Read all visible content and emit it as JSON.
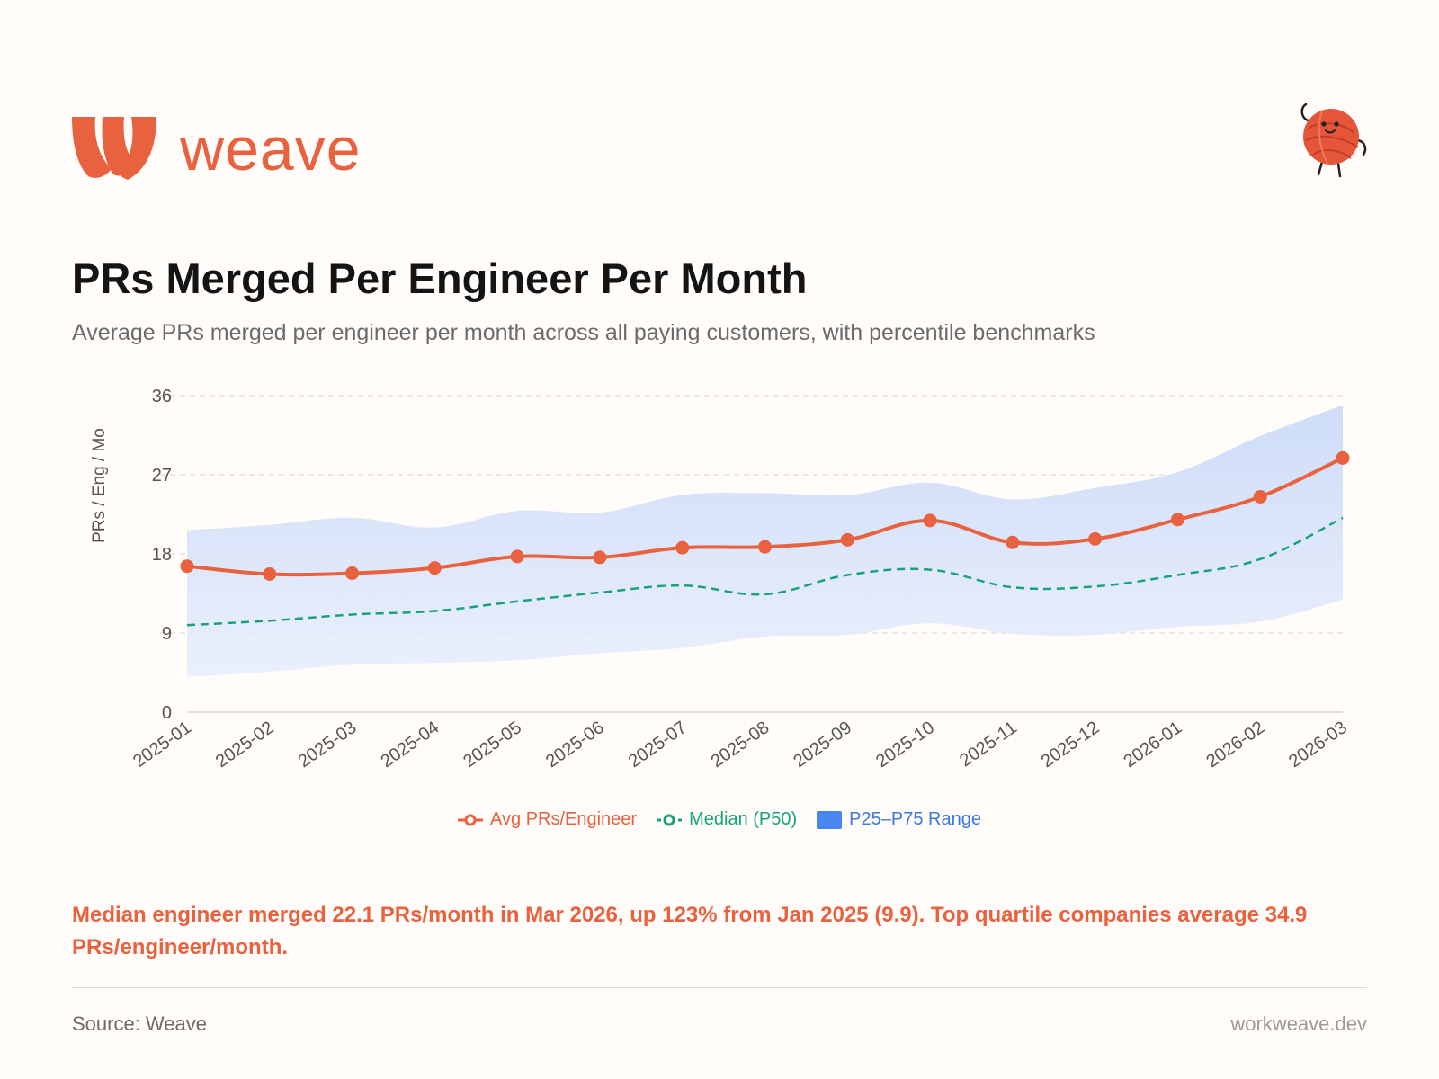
{
  "brand": {
    "name": "weave",
    "logo_icon": "weave-w-logo-icon",
    "mascot_icon": "yarn-ball-mascot-icon",
    "accent": "#e8623f"
  },
  "header": {
    "title": "PRs Merged Per Engineer Per Month",
    "subtitle": "Average PRs merged per engineer per month across all paying customers, with percentile benchmarks"
  },
  "chart_data": {
    "type": "line",
    "title": "PRs Merged Per Engineer Per Month",
    "xlabel": "",
    "ylabel": "PRs / Eng / Mo",
    "ylim": [
      0,
      36
    ],
    "yticks": [
      0,
      9,
      18,
      27,
      36
    ],
    "grid": true,
    "legend_position": "bottom-center",
    "categories": [
      "2025-01",
      "2025-02",
      "2025-03",
      "2025-04",
      "2025-05",
      "2025-06",
      "2025-07",
      "2025-08",
      "2025-09",
      "2025-10",
      "2025-11",
      "2025-12",
      "2026-01",
      "2026-02",
      "2026-03"
    ],
    "series": [
      {
        "name": "Avg PRs/Engineer",
        "style": "solid-markers",
        "color": "#e8623f",
        "values": [
          16.6,
          15.7,
          15.8,
          16.4,
          17.7,
          17.6,
          18.7,
          18.8,
          19.6,
          21.8,
          19.3,
          19.7,
          21.9,
          24.5,
          28.9
        ]
      },
      {
        "name": "Median (P50)",
        "style": "dashed",
        "color": "#17a37a",
        "values": [
          9.9,
          10.4,
          11.1,
          11.5,
          12.6,
          13.6,
          14.4,
          13.4,
          15.6,
          16.2,
          14.2,
          14.3,
          15.6,
          17.4,
          22.1
        ]
      },
      {
        "name": "P25–P75 Range",
        "style": "band",
        "color": "#4a86f0",
        "low": [
          4.0,
          4.6,
          5.4,
          5.6,
          5.9,
          6.7,
          7.3,
          8.6,
          8.8,
          10.1,
          8.9,
          8.8,
          9.7,
          10.3,
          12.8
        ],
        "high": [
          20.7,
          21.3,
          22.1,
          21.0,
          22.9,
          22.7,
          24.7,
          24.9,
          24.7,
          26.1,
          24.2,
          25.5,
          27.3,
          31.4,
          34.9
        ]
      }
    ]
  },
  "legend": {
    "avg_label": "Avg PRs/Engineer",
    "median_label": "Median (P50)",
    "range_label": "P25–P75 Range"
  },
  "insight": "Median engineer merged 22.1 PRs/month in Mar 2026, up 123% from Jan 2025 (9.9). Top quartile companies average 34.9 PRs/engineer/month.",
  "footer": {
    "source": "Source: Weave",
    "site": "workweave.dev"
  }
}
